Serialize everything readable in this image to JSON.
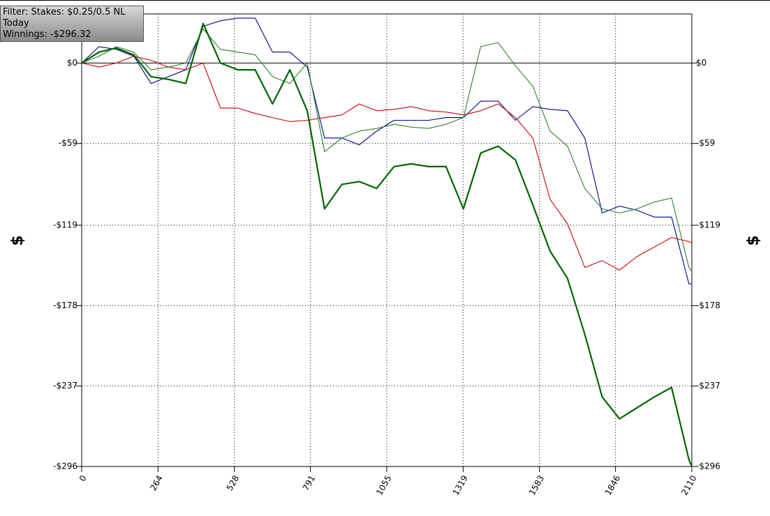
{
  "info": {
    "lines": [
      "Filter: Stakes: $0.25/0.5 NL",
      "Today",
      "Winnings: -$296.32"
    ]
  },
  "chart_data": {
    "type": "line",
    "y_label": "$",
    "x": [
      0,
      60,
      120,
      180,
      240,
      300,
      360,
      420,
      480,
      540,
      600,
      660,
      720,
      780,
      840,
      900,
      960,
      1020,
      1080,
      1140,
      1200,
      1260,
      1320,
      1380,
      1440,
      1500,
      1560,
      1620,
      1680,
      1740,
      1800,
      1860,
      1920,
      1980,
      2040,
      2100,
      2110
    ],
    "xlim": [
      0,
      2110
    ],
    "xticks": [
      0,
      264,
      528,
      791,
      1055,
      1319,
      1583,
      1846,
      2110
    ],
    "ylim": [
      -296,
      36
    ],
    "yticks": [
      {
        "value": 0,
        "label": "$0"
      },
      {
        "value": -59,
        "label": "-$59"
      },
      {
        "value": -119,
        "label": "-$119"
      },
      {
        "value": -178,
        "label": "-$178"
      },
      {
        "value": -237,
        "label": "-$237"
      },
      {
        "value": -296,
        "label": "-$296"
      }
    ],
    "grid": true,
    "series": [
      {
        "color": "#006400",
        "values": [
          0,
          8,
          11,
          6,
          -10,
          -12,
          -15,
          29,
          0,
          -5,
          -5,
          -30,
          -5,
          -35,
          -107,
          -89,
          -87,
          -92,
          -76,
          -74,
          -76,
          -76,
          -107,
          -66,
          -61,
          -71,
          -104,
          -138,
          -158,
          -199,
          -245,
          -261,
          -253,
          -245,
          -238,
          -291,
          -296
        ]
      },
      {
        "color": "#2e7d2e",
        "values": [
          0,
          5,
          12,
          8,
          -5,
          -3,
          0,
          25,
          10,
          8,
          6,
          -10,
          -15,
          0,
          -65,
          -55,
          -50,
          -48,
          -45,
          -47,
          -48,
          -45,
          -40,
          12,
          15,
          -2,
          -17,
          -50,
          -61,
          -92,
          -107,
          -110,
          -107,
          -102,
          -99,
          -150,
          -153
        ]
      },
      {
        "color": "#cc0000",
        "values": [
          0,
          -3,
          0,
          5,
          2,
          -3,
          -5,
          0,
          -33,
          -33,
          -37,
          -40,
          -43,
          -42,
          -40,
          -38,
          -30,
          -35,
          -34,
          -32,
          -35,
          -36,
          -38,
          -35,
          -30,
          -40,
          -55,
          -100,
          -118,
          -150,
          -145,
          -152,
          -142,
          -135,
          -128,
          -131,
          -132
        ]
      },
      {
        "color": "#00008b",
        "values": [
          0,
          12,
          10,
          5,
          -15,
          -10,
          -5,
          27,
          31,
          33,
          33,
          8,
          8,
          -3,
          -55,
          -55,
          -60,
          -50,
          -42,
          -42,
          -42,
          -40,
          -40,
          -28,
          -28,
          -42,
          -32,
          -34,
          -35,
          -55,
          -110,
          -105,
          -108,
          -113,
          -113,
          -162,
          -162
        ]
      }
    ]
  }
}
